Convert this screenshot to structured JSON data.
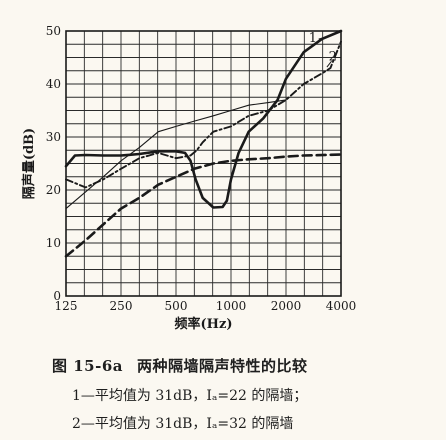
{
  "chart_data": {
    "type": "line",
    "x_scale": "log",
    "xlabel": "频率(Hz)",
    "ylabel": "隔声量(dB)",
    "xlim": [
      125,
      4000
    ],
    "ylim": [
      0,
      50
    ],
    "x_ticks": [
      125,
      250,
      500,
      1000,
      2000,
      4000
    ],
    "x_tick_labels": [
      "125",
      "250",
      "500",
      "1000",
      "2000",
      "4000"
    ],
    "y_ticks": [
      0,
      10,
      20,
      30,
      40,
      50
    ],
    "y_tick_labels": [
      "0",
      "10",
      "20",
      "30",
      "40",
      "50"
    ],
    "grid": true,
    "series": [
      {
        "name": "1",
        "style": "solid-thick",
        "points": [
          [
            125,
            24.5
          ],
          [
            140,
            26.5
          ],
          [
            160,
            26.6
          ],
          [
            200,
            26.5
          ],
          [
            250,
            26.5
          ],
          [
            315,
            26.8
          ],
          [
            400,
            27.3
          ],
          [
            500,
            27.3
          ],
          [
            560,
            27.0
          ],
          [
            600,
            25.5
          ],
          [
            640,
            22
          ],
          [
            700,
            18.5
          ],
          [
            800,
            16.7
          ],
          [
            900,
            16.8
          ],
          [
            950,
            18
          ],
          [
            1000,
            22
          ],
          [
            1100,
            27
          ],
          [
            1250,
            31
          ],
          [
            1500,
            33.5
          ],
          [
            1800,
            37
          ],
          [
            2000,
            41
          ],
          [
            2500,
            46
          ],
          [
            3150,
            48.5
          ],
          [
            4000,
            50
          ]
        ]
      },
      {
        "name": "2",
        "style": "dash-dot",
        "points": [
          [
            125,
            22
          ],
          [
            160,
            20.5
          ],
          [
            200,
            22
          ],
          [
            250,
            24
          ],
          [
            315,
            26
          ],
          [
            400,
            27
          ],
          [
            500,
            26
          ],
          [
            600,
            26.5
          ],
          [
            650,
            27.5
          ],
          [
            700,
            29
          ],
          [
            800,
            31
          ],
          [
            1000,
            32
          ],
          [
            1250,
            34
          ],
          [
            1600,
            35
          ],
          [
            2000,
            37
          ],
          [
            2500,
            40
          ],
          [
            3150,
            42
          ],
          [
            3500,
            43
          ],
          [
            4000,
            48
          ]
        ]
      },
      {
        "name": "",
        "style": "dashed-thick",
        "points": [
          [
            125,
            7.5
          ],
          [
            160,
            10.5
          ],
          [
            200,
            13.5
          ],
          [
            250,
            16.5
          ],
          [
            315,
            18.5
          ],
          [
            400,
            21
          ],
          [
            500,
            22.5
          ],
          [
            630,
            24
          ],
          [
            800,
            25
          ],
          [
            1000,
            25.5
          ],
          [
            1250,
            25.8
          ],
          [
            1600,
            26
          ],
          [
            2000,
            26.3
          ],
          [
            2500,
            26.5
          ],
          [
            4000,
            26.7
          ]
        ]
      },
      {
        "name": "",
        "style": "solid-thin",
        "points": [
          [
            125,
            16.5
          ],
          [
            200,
            22.5
          ],
          [
            250,
            25.5
          ],
          [
            315,
            28
          ],
          [
            400,
            31
          ],
          [
            500,
            32
          ],
          [
            630,
            33
          ],
          [
            800,
            34
          ],
          [
            1000,
            35
          ],
          [
            1250,
            36
          ],
          [
            1600,
            36.5
          ],
          [
            2000,
            37
          ]
        ]
      }
    ],
    "annotations": [
      "1",
      "2"
    ],
    "title": "图 15-6a　两种隔墙隔声特性的比较",
    "notes": [
      "1—平均值为 31dB，Iₐ=22 的隔墙；",
      "2—平均值为 31dB，Iₐ=32 的隔墙"
    ]
  },
  "caption": {
    "figure_number": "图 15-6a",
    "title": "两种隔墙隔声特性的比较",
    "note1": "1—平均值为 31dB，Iₐ=22 的隔墙；",
    "note2": "2—平均值为 31dB，Iₐ=32 的隔墙"
  },
  "colors": {
    "ink": "#1a1a1a",
    "grid": "#2a2a2a",
    "background": "#fbf8f1"
  }
}
